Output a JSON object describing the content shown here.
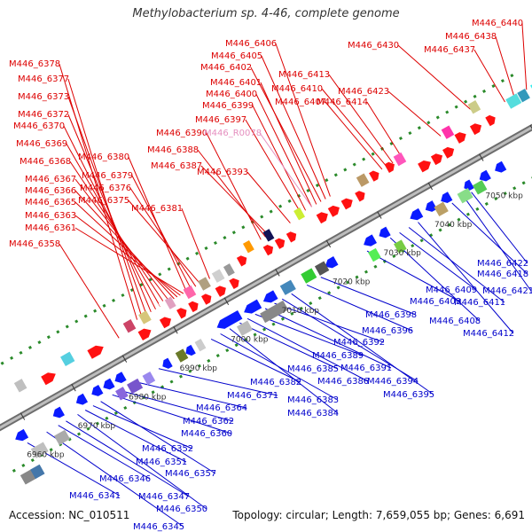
{
  "title": "Methylobacterium sp. 4-46, complete genome",
  "accession_text": "Accession: NC_010511",
  "topology_text": "Topology: circular; Length: 7,659,055 bp; Genes: 6,691",
  "colors": {
    "forward_label": "#dd0000",
    "reverse_label": "#0000cc",
    "rna_label": "#e58fbf",
    "forward_arrow": "#ff1111",
    "reverse_arrow": "#0a1bff",
    "backbone": "#999999",
    "dots": "#2a8a2a"
  },
  "ticks": [
    {
      "label": "6960 kbp"
    },
    {
      "label": "6970 kbp"
    },
    {
      "label": "6980 kbp"
    },
    {
      "label": "6990 kbp"
    },
    {
      "label": "7000 kbp"
    },
    {
      "label": "7010 kbp"
    },
    {
      "label": "7020 kbp"
    },
    {
      "label": "7030 kbp"
    },
    {
      "label": "7040 kbp"
    },
    {
      "label": "7050 kbp"
    },
    {
      "label": "7060 kbp"
    }
  ],
  "forward_labels": [
    "M446_6378",
    "M446_6377",
    "M446_6373",
    "M446_6372",
    "M446_6370",
    "M446_6369",
    "M446_6368",
    "M446_6367",
    "M446_6366",
    "M446_6365",
    "M446_6363",
    "M446_6361",
    "M446_6358",
    "M446_6380",
    "M446_6379",
    "M446_6376",
    "M446_6375",
    "M446_6381",
    "M446_6390",
    "M446_6388",
    "M446_6387",
    "M446_6393",
    "M446_6397",
    "M446_6399",
    "M446_6400",
    "M446_6401",
    "M446_6402",
    "M446_6405",
    "M446_6406",
    "M446_6407",
    "M446_6410",
    "M446_6413",
    "M446_6414",
    "M446_6423",
    "M446_6430",
    "M446_6437",
    "M446_6438",
    "M446_6440"
  ],
  "rna_labels": [
    "M446_R0078"
  ],
  "reverse_labels": [
    "M446_6341",
    "M446_6345",
    "M446_6346",
    "M446_6347",
    "M446_6350",
    "M446_6351",
    "M446_6352",
    "M446_6357",
    "M446_6360",
    "M446_6362",
    "M446_6364",
    "M446_6371",
    "M446_6382",
    "M446_6383",
    "M446_6384",
    "M446_6385",
    "M446_6386",
    "M446_6389",
    "M446_6391",
    "M446_6392",
    "M446_6394",
    "M446_6395",
    "M446_6396",
    "M446_6398",
    "M446_6403",
    "M446_6408",
    "M446_6409",
    "M446_6411",
    "M446_6412",
    "M446_6418",
    "M446_6421",
    "M446_6422"
  ]
}
